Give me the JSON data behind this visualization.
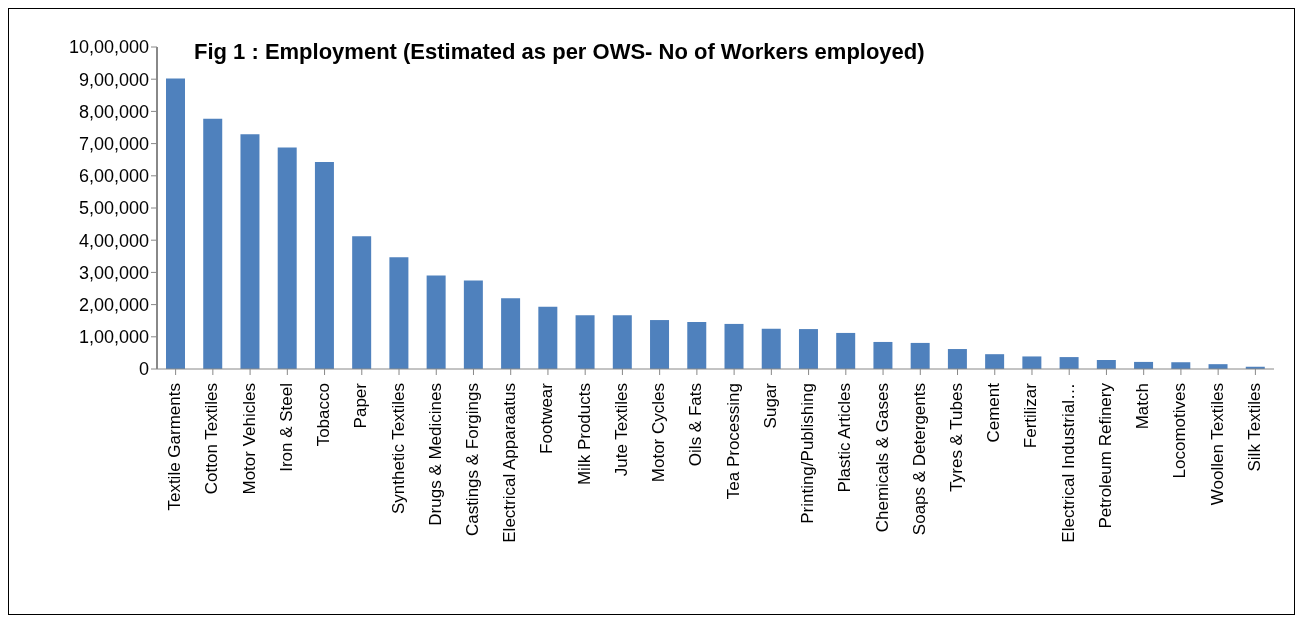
{
  "chart_data": {
    "type": "bar",
    "title": "Fig 1 : Employment (Estimated as per OWS- No of Workers employed)",
    "categories": [
      "Textile Garments",
      "Cotton Textiles",
      "Motor Vehicles",
      "Iron  & Steel",
      "Tobacco",
      "Paper",
      "Synthetic Textiles",
      "Drugs & Medicines",
      "Castings & Forgings",
      "Electrical Apparaatus",
      "Footwear",
      "Milk Products",
      "Jute Textiles",
      "Motor Cycles",
      "Oils & Fats",
      "Tea Processing",
      "Sugar",
      "Printing/Publishing",
      "Plastic Articles",
      "Chemicals & Gases",
      "Soaps & Detergents",
      "Tyres & Tubes",
      "Cement",
      "Fertilizar",
      "Electrical Industrial…",
      "Petroleum Refinery",
      "Match",
      "Locomotives",
      "Woollen Textiles",
      "Silk Textiles"
    ],
    "values": [
      902000,
      777000,
      729000,
      688000,
      643000,
      412000,
      347000,
      290000,
      275000,
      220000,
      193000,
      167000,
      167000,
      152000,
      146000,
      140000,
      125000,
      124000,
      112000,
      84000,
      81000,
      62000,
      46000,
      39000,
      37000,
      28000,
      22000,
      21000,
      15000,
      7000
    ],
    "color": "#4f81bd",
    "ylim": [
      0,
      1000000
    ],
    "yticks": [
      0,
      {
        "value": 100000,
        "label": "1,00,000"
      },
      {
        "value": 200000,
        "label": "2,00,000"
      },
      {
        "value": 300000,
        "label": "3,00,000"
      },
      {
        "value": 400000,
        "label": "4,00,000"
      },
      {
        "value": 500000,
        "label": "5,00,000"
      },
      {
        "value": 600000,
        "label": "6,00,000"
      },
      {
        "value": 700000,
        "label": "7,00,000"
      },
      {
        "value": 800000,
        "label": "8,00,000"
      },
      {
        "value": 900000,
        "label": "9,00,000"
      },
      {
        "value": 1000000,
        "label": "10,00,000"
      }
    ],
    "grid": false,
    "legend": false
  }
}
